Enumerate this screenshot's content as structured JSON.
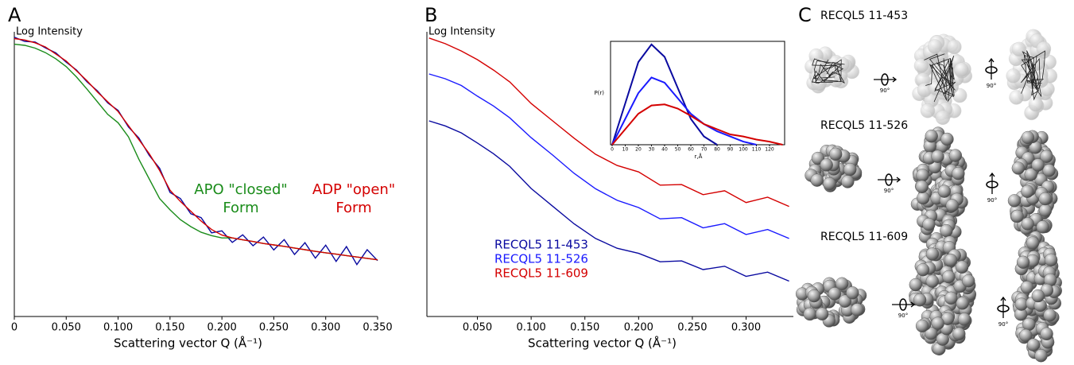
{
  "figure": {
    "panel_labels": [
      "A",
      "B",
      "C"
    ],
    "structures": [
      {
        "label": "RECQL5 11-453",
        "rotations": [
          "90°",
          "90°"
        ]
      },
      {
        "label": "RECQL5 11-526",
        "rotations": [
          "90°",
          "90°"
        ]
      },
      {
        "label": "RECQL5 11-609",
        "rotations": [
          "90°",
          "90°"
        ]
      }
    ]
  },
  "chart_data": [
    {
      "type": "line",
      "ylabel": "Log Intensity",
      "xlabel": "Scattering vector Q (Å⁻¹)",
      "x": [
        0,
        0.01,
        0.02,
        0.03,
        0.04,
        0.05,
        0.06,
        0.07,
        0.08,
        0.09,
        0.1,
        0.11,
        0.12,
        0.13,
        0.14,
        0.15,
        0.16,
        0.17,
        0.18,
        0.19,
        0.2,
        0.21,
        0.22,
        0.23,
        0.24,
        0.25,
        0.26,
        0.27,
        0.28,
        0.29,
        0.3,
        0.31,
        0.32,
        0.33,
        0.34,
        0.35
      ],
      "xlim": [
        0,
        0.35
      ],
      "ylim": [
        0,
        100
      ],
      "xticks": [
        0,
        {
          "value": 0.05,
          "label": "0.050"
        },
        {
          "value": 0.1,
          "label": "0.100"
        },
        {
          "value": 0.15,
          "label": "0.150"
        },
        {
          "value": 0.2,
          "label": "0.200"
        },
        {
          "value": 0.25,
          "label": "0.250"
        },
        {
          "value": 0.3,
          "label": "0.300"
        },
        {
          "value": 0.35,
          "label": "0.350"
        }
      ],
      "series": [
        {
          "color": "#0a0aa0",
          "values": [
            99.5,
            98,
            97.8,
            95.7,
            93.9,
            90.6,
            87.8,
            83.6,
            80.4,
            76.1,
            73.4,
            67.5,
            63.6,
            57.4,
            52.8,
            44.2,
            42,
            36.6,
            35.2,
            29.8,
            30.5,
            26.4,
            29.1,
            25.2,
            28.3,
            23.7,
            27.4,
            22.1,
            26.3,
            20.8,
            25.4,
            19.6,
            24.9,
            18.5,
            23.8,
            19.9
          ]
        },
        {
          "color": "#1a8c1a",
          "values": [
            97,
            96.6,
            95.6,
            94,
            91.8,
            89,
            85.3,
            81,
            76.5,
            72,
            69,
            64,
            56,
            49,
            42,
            38,
            34.5,
            32,
            30,
            28.8,
            28,
            28,
            27.3,
            26.7,
            26,
            25.5,
            25,
            24.4,
            23.8,
            23.2,
            22.7,
            22.2,
            21.7,
            21.2,
            20.7,
            20.2
          ]
        },
        {
          "color": "#d40000",
          "values": [
            99,
            98.5,
            97.5,
            96,
            93.5,
            91,
            87.5,
            84,
            80,
            76.5,
            73,
            68,
            63,
            58,
            52,
            45,
            41,
            37.5,
            34,
            31,
            29,
            28,
            27.3,
            26.7,
            26,
            25.5,
            25,
            24.4,
            23.8,
            23.2,
            22.7,
            22.2,
            21.7,
            21.2,
            20.7,
            20.2
          ]
        }
      ],
      "annotations": [
        {
          "text": "APO \"closed\"",
          "color": "#1a8c1a"
        },
        {
          "text": "Form",
          "color": "#1a8c1a"
        },
        {
          "text": "ADP \"open\"",
          "color": "#d40000"
        },
        {
          "text": "Form",
          "color": "#d40000"
        }
      ]
    },
    {
      "type": "line",
      "ylabel": "Log Intensity",
      "xlabel": "Scattering vector Q (Å⁻¹)",
      "x": [
        0.005,
        0.02,
        0.035,
        0.05,
        0.065,
        0.08,
        0.1,
        0.12,
        0.14,
        0.16,
        0.18,
        0.2,
        0.22,
        0.24,
        0.26,
        0.28,
        0.3,
        0.32,
        0.34
      ],
      "xlim": [
        0.003,
        0.344
      ],
      "ylim": [
        0,
        100
      ],
      "xticks": [
        {
          "value": 0.05,
          "label": "0.050"
        },
        {
          "value": 0.1,
          "label": "0.100"
        },
        {
          "value": 0.15,
          "label": "0.150"
        },
        {
          "value": 0.2,
          "label": "0.200"
        },
        {
          "value": 0.25,
          "label": "0.250"
        },
        {
          "value": 0.3,
          "label": "0.300"
        }
      ],
      "series": [
        {
          "name": "RECQL5 11-453",
          "color": "#0a0aa0",
          "values": [
            69.7,
            67.9,
            65.4,
            61.8,
            58,
            53.5,
            45.6,
            39.3,
            33,
            27.8,
            24.3,
            22.5,
            19.5,
            19.8,
            16.7,
            17.9,
            14.3,
            15.8,
            12.6
          ]
        },
        {
          "name": "RECQL5 11-526",
          "color": "#1a1aff",
          "values": [
            86.4,
            84.7,
            82.3,
            78.5,
            75,
            70.8,
            63.7,
            57.5,
            51,
            45.5,
            41.4,
            38.8,
            34.8,
            35.2,
            31.6,
            33.1,
            29.2,
            31,
            27.8
          ]
        },
        {
          "name": "RECQL5 11-609",
          "color": "#d40000",
          "values": [
            99.2,
            97.2,
            94.6,
            91.5,
            87.8,
            83.6,
            75.9,
            69.7,
            63.5,
            57.8,
            53.8,
            51.5,
            46.8,
            47,
            43.4,
            44.8,
            40.6,
            42.5,
            39.2
          ]
        }
      ]
    },
    {
      "type": "line",
      "ylabel": "P(r)",
      "xlabel": "r,Å",
      "x": [
        0,
        10,
        20,
        30,
        40,
        50,
        60,
        70,
        80,
        90,
        100,
        110,
        120,
        130
      ],
      "xlim": [
        0,
        131.5
      ],
      "ylim": [
        0,
        100
      ],
      "xticks": [
        0,
        10,
        20,
        30,
        40,
        50,
        60,
        70,
        80,
        90,
        100,
        110,
        120
      ],
      "series": [
        {
          "color": "#0a0aa0",
          "values": [
            0,
            40,
            80,
            97,
            85,
            55,
            25,
            8,
            0,
            null,
            null,
            null,
            null,
            null
          ]
        },
        {
          "color": "#1a1aff",
          "values": [
            0,
            25,
            50,
            65,
            60,
            45,
            30,
            20,
            13,
            8,
            3,
            0,
            null,
            null
          ]
        },
        {
          "color": "#d40000",
          "values": [
            0,
            15,
            30,
            38,
            39,
            35,
            28,
            20,
            15,
            10,
            8,
            5,
            3,
            0
          ]
        }
      ]
    }
  ]
}
